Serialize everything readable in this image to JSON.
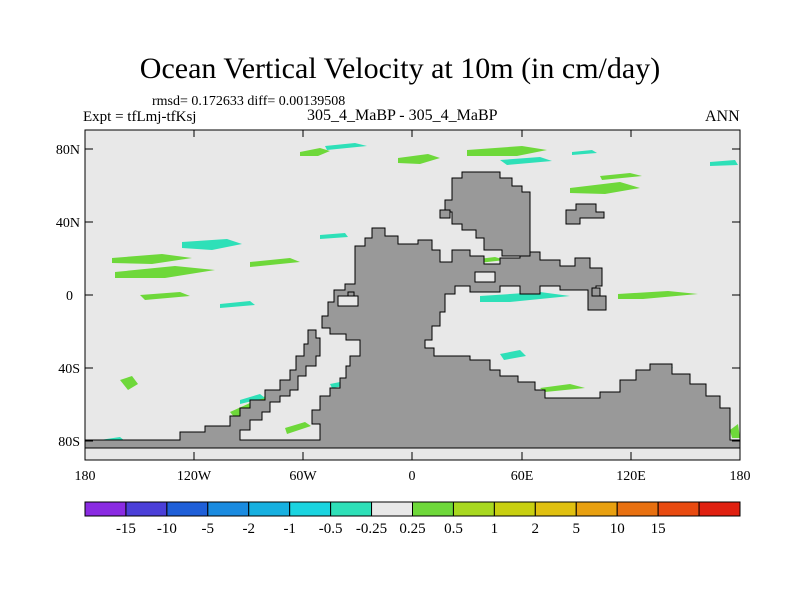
{
  "title": "Ocean Vertical Velocity at 10m (in cm/day)",
  "stats": "rmsd= 0.172633 diff= 0.00139508",
  "experiment": "Expt = tfLmj-tfKsj",
  "subtitle": "305_4_MaBP - 305_4_MaBP",
  "season": "ANN",
  "map": {
    "x_ticks": [
      "180",
      "120W",
      "60W",
      "0",
      "60E",
      "120E",
      "180"
    ],
    "y_ticks": [
      "80N",
      "40N",
      "0",
      "40S",
      "80S"
    ],
    "ocean_color": "#e8e8e8",
    "land_color": "#999999"
  },
  "colorbar": {
    "colors": [
      "#8a2be2",
      "#4b3fd8",
      "#1f5fd8",
      "#1a8be0",
      "#17b0e0",
      "#1ad4e0",
      "#2ee0b8",
      "#e8e8e8",
      "#6ed83a",
      "#a8d820",
      "#c8cf10",
      "#e0c010",
      "#e8a010",
      "#e87010",
      "#e84a10",
      "#e02010"
    ],
    "labels": [
      "-15",
      "-10",
      "-5",
      "-2",
      "-1",
      "-0.5",
      "-0.25",
      "0.25",
      "0.5",
      "1",
      "2",
      "5",
      "10",
      "15"
    ]
  }
}
